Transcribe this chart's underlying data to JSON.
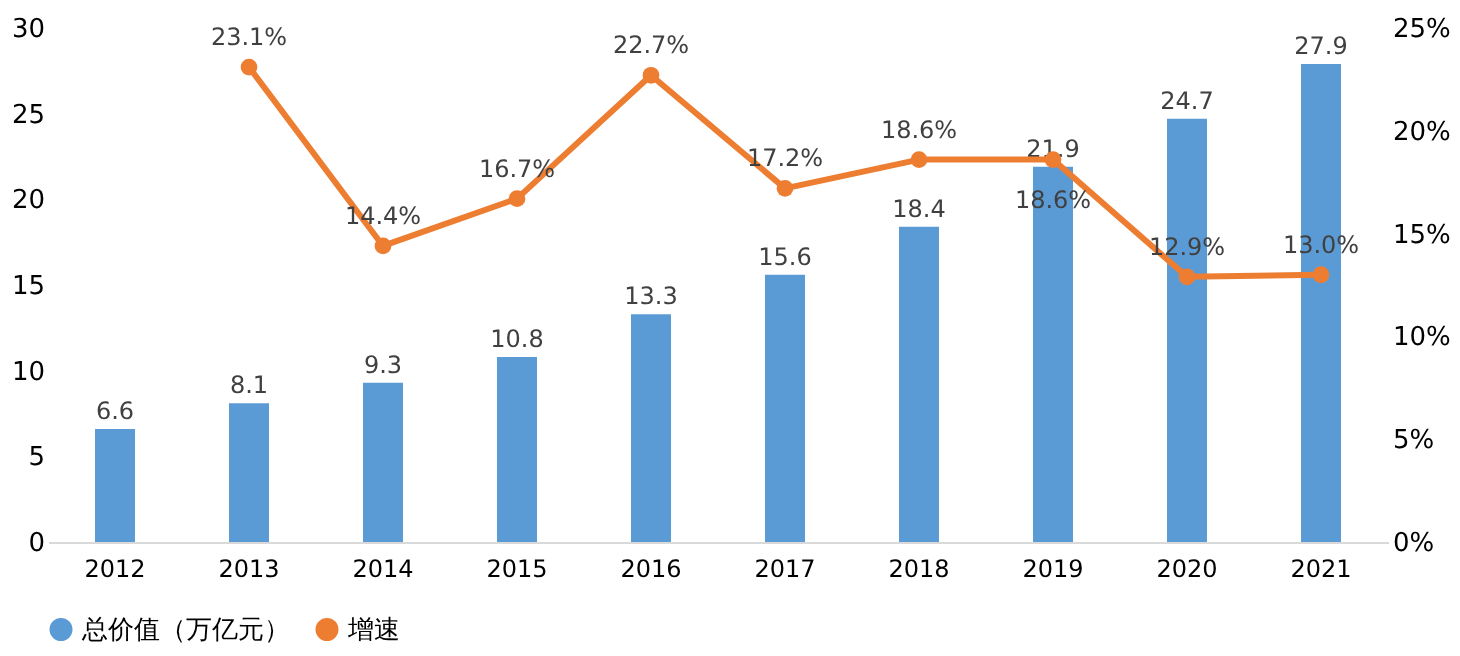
{
  "chart_data": {
    "type": "bar",
    "categories": [
      "2012",
      "2013",
      "2014",
      "2015",
      "2016",
      "2017",
      "2018",
      "2019",
      "2020",
      "2021"
    ],
    "series": [
      {
        "name": "总价值（万亿元）",
        "color": "#5b9bd5",
        "values": [
          6.6,
          8.1,
          9.3,
          10.8,
          13.3,
          15.6,
          18.4,
          21.9,
          24.7,
          27.9
        ],
        "value_labels": [
          "6.6",
          "8.1",
          "9.3",
          "10.8",
          "13.3",
          "15.6",
          "18.4",
          "21.9",
          "24.7",
          "27.9"
        ]
      },
      {
        "name": "增速",
        "type": "line",
        "axis": "y2",
        "color": "#ed7d31",
        "marker": "circle",
        "values": [
          null,
          23.1,
          14.4,
          16.7,
          22.7,
          17.2,
          18.6,
          18.6,
          12.9,
          13.0
        ],
        "value_labels": [
          null,
          "23.1%",
          "14.4%",
          "16.7%",
          "22.7%",
          "17.2%",
          "18.6%",
          "18.6%",
          "12.9%",
          "13.0%"
        ]
      }
    ],
    "ylim": [
      0,
      30
    ],
    "yticks": [
      0,
      5,
      10,
      15,
      20,
      25,
      30
    ],
    "y2lim": [
      0,
      25
    ],
    "y2ticks": [
      {
        "value": 0,
        "label": "0%"
      },
      {
        "value": 5,
        "label": "5%"
      },
      {
        "value": 10,
        "label": "10%"
      },
      {
        "value": 15,
        "label": "15%"
      },
      {
        "value": 20,
        "label": "20%"
      },
      {
        "value": 25,
        "label": "25%"
      }
    ],
    "grid": false,
    "legend": "bottom"
  }
}
